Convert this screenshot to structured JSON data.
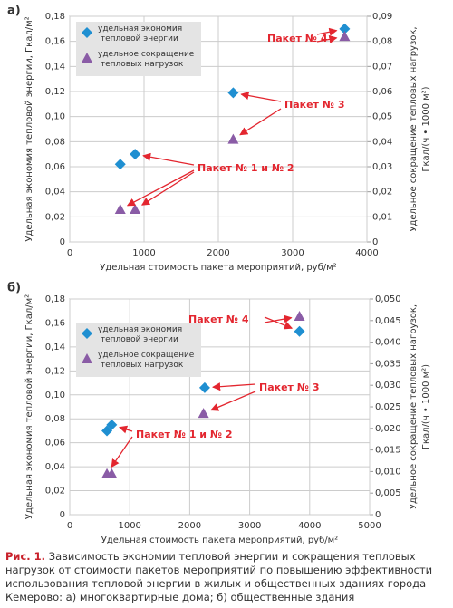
{
  "chart_data": [
    {
      "type": "scatter",
      "panel": "а)",
      "xlabel": "Удельная стоимость пакета мероприятий, руб/м²",
      "ylabel": "Удельная экономия тепловой энергии, Гкал/м²",
      "y2label": [
        "Удельное сокращение тепловых нагрузок,",
        "Гкал/(ч • 1000 м²)"
      ],
      "xlim": [
        0,
        4000
      ],
      "xticks": [
        0,
        1000,
        2000,
        3000,
        4000
      ],
      "ylim": [
        0,
        0.18
      ],
      "yticks": [
        0,
        {
          "value": 0.02,
          "label": "0,02"
        },
        {
          "value": 0.04,
          "label": "0,04"
        },
        {
          "value": 0.06,
          "label": "0,06"
        },
        {
          "value": 0.08,
          "label": "0,08"
        },
        {
          "value": 0.1,
          "label": "0,10"
        },
        {
          "value": 0.12,
          "label": "0,12"
        },
        {
          "value": 0.14,
          "label": "0,14"
        },
        {
          "value": 0.16,
          "label": "0,16"
        },
        {
          "value": 0.18,
          "label": "0,18"
        }
      ],
      "y2lim": [
        0,
        0.09
      ],
      "y2ticks": [
        0,
        {
          "value": 0.01,
          "label": "0,01"
        },
        {
          "value": 0.02,
          "label": "0,02"
        },
        {
          "value": 0.03,
          "label": "0,03"
        },
        {
          "value": 0.04,
          "label": "0,04"
        },
        {
          "value": 0.05,
          "label": "0,05"
        },
        {
          "value": 0.06,
          "label": "0,06"
        },
        {
          "value": 0.07,
          "label": "0,07"
        },
        {
          "value": 0.08,
          "label": "0,08"
        },
        {
          "value": 0.09,
          "label": "0,09"
        }
      ],
      "grid": true,
      "legend": "upper left",
      "series": [
        {
          "name": "удельная экономия тепловой энергии",
          "color": "#1f8fd1",
          "marker": "diamond",
          "x": [
            680,
            880,
            2200,
            3700
          ],
          "values": [
            0.062,
            0.07,
            0.119,
            0.17
          ]
        },
        {
          "name": "удельное сокращение тепловых нагрузок",
          "color": "#8a5ca6",
          "marker": "triangle",
          "axis": "y2",
          "x": [
            680,
            880,
            2200,
            3700
          ],
          "values": [
            0.013,
            0.013,
            0.041,
            0.082
          ]
        }
      ],
      "annotations": [
        "Пакет № 4",
        "Пакет № 3",
        "Пакет № 1 и № 2"
      ]
    },
    {
      "type": "scatter",
      "panel": "б)",
      "xlabel": "Удельная стоимость пакета мероприятий, руб/м²",
      "ylabel": "Удельная экономия тепловой энергии, Гкал/м²",
      "y2label": [
        "Удельное сокращение тепловых нагрузок,",
        "Гкал/(ч • 1000 м²)"
      ],
      "xlim": [
        0,
        5000
      ],
      "xticks": [
        0,
        1000,
        2000,
        3000,
        4000,
        5000
      ],
      "ylim": [
        0,
        0.18
      ],
      "yticks": [
        0,
        {
          "value": 0.02,
          "label": "0,02"
        },
        {
          "value": 0.04,
          "label": "0,04"
        },
        {
          "value": 0.06,
          "label": "0,06"
        },
        {
          "value": 0.08,
          "label": "0,08"
        },
        {
          "value": 0.1,
          "label": "0,10"
        },
        {
          "value": 0.12,
          "label": "0,12"
        },
        {
          "value": 0.14,
          "label": "0,14"
        },
        {
          "value": 0.16,
          "label": "0,16"
        },
        {
          "value": 0.18,
          "label": "0,18"
        }
      ],
      "y2lim": [
        0,
        0.05
      ],
      "y2ticks": [
        0,
        {
          "value": 0.005,
          "label": "0,005"
        },
        {
          "value": 0.01,
          "label": "0,010"
        },
        {
          "value": 0.015,
          "label": "0,015"
        },
        {
          "value": 0.02,
          "label": "0,020"
        },
        {
          "value": 0.025,
          "label": "0,025"
        },
        {
          "value": 0.03,
          "label": "0,030"
        },
        {
          "value": 0.035,
          "label": "0,035"
        },
        {
          "value": 0.04,
          "label": "0,040"
        },
        {
          "value": 0.045,
          "label": "0,045"
        },
        {
          "value": 0.05,
          "label": "0,050"
        }
      ],
      "grid": true,
      "legend": "upper left",
      "series": [
        {
          "name": "удельная экономия тепловой энергии",
          "color": "#1f8fd1",
          "marker": "diamond",
          "x": [
            620,
            700,
            2250,
            3830
          ],
          "values": [
            0.07,
            0.075,
            0.106,
            0.153
          ]
        },
        {
          "name": "удельное сокращение тепловых нагрузок",
          "color": "#8a5ca6",
          "marker": "triangle",
          "axis": "y2",
          "x": [
            620,
            700,
            2230,
            3830
          ],
          "values": [
            0.0095,
            0.0095,
            0.0235,
            0.046
          ]
        }
      ],
      "annotations": [
        "Пакет № 4",
        "Пакет № 3",
        "Пакет № 1 и № 2"
      ]
    }
  ],
  "caption": {
    "label": "Рис. 1.",
    "text": "Зависимость экономии тепловой энергии и сокращения тепловых нагрузок от стоимости пакетов мероприятий по повышению эффективности использования тепловой энергии в жилых и общественных зданиях города Кемерово: а) многоквартирные дома; б) общественные здания"
  }
}
